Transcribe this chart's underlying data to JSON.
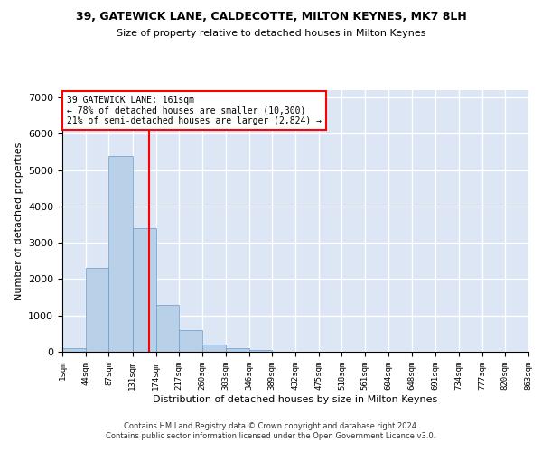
{
  "title": "39, GATEWICK LANE, CALDECOTTE, MILTON KEYNES, MK7 8LH",
  "subtitle": "Size of property relative to detached houses in Milton Keynes",
  "xlabel": "Distribution of detached houses by size in Milton Keynes",
  "ylabel": "Number of detached properties",
  "bar_color": "#b8d0e8",
  "bar_edge_color": "#6699cc",
  "background_color": "#dce6f5",
  "grid_color": "#ffffff",
  "red_line_x": 161,
  "annotation_title": "39 GATEWICK LANE: 161sqm",
  "annotation_line1": "← 78% of detached houses are smaller (10,300)",
  "annotation_line2": "21% of semi-detached houses are larger (2,824) →",
  "footnote1": "Contains HM Land Registry data © Crown copyright and database right 2024.",
  "footnote2": "Contains public sector information licensed under the Open Government Licence v3.0.",
  "bin_edges": [
    1,
    44,
    87,
    131,
    174,
    217,
    260,
    303,
    346,
    389,
    432,
    475,
    518,
    561,
    604,
    648,
    691,
    734,
    777,
    820,
    863
  ],
  "bar_heights": [
    100,
    2300,
    5400,
    3400,
    1300,
    600,
    200,
    100,
    50,
    10,
    5,
    2,
    1,
    0,
    0,
    0,
    0,
    0,
    0,
    0
  ],
  "ylim": [
    0,
    7200
  ],
  "yticks": [
    0,
    1000,
    2000,
    3000,
    4000,
    5000,
    6000,
    7000
  ]
}
